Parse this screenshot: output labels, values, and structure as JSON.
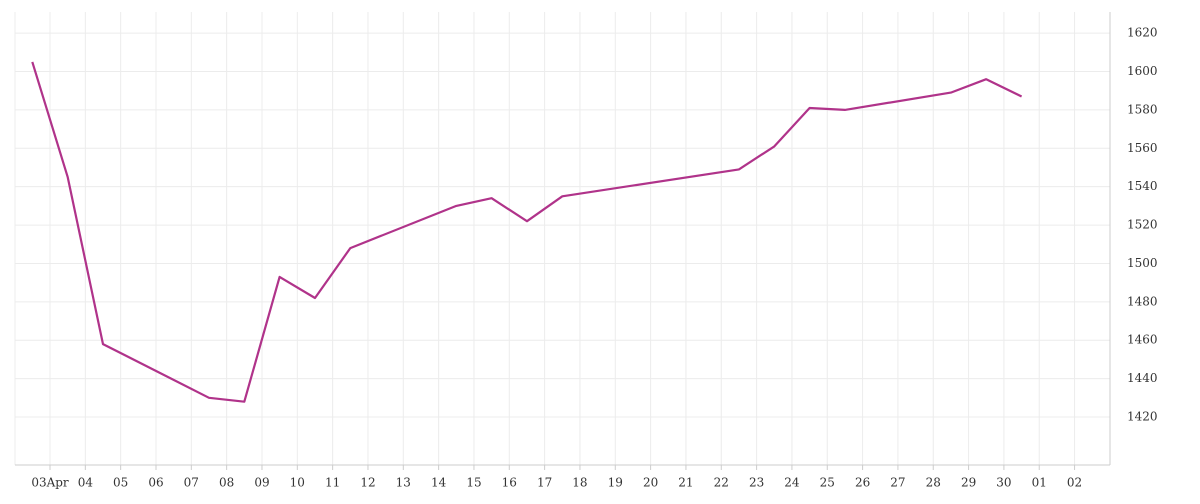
{
  "chart_data": {
    "type": "line",
    "xticks": [
      "03Apr",
      "04",
      "05",
      "06",
      "07",
      "08",
      "09",
      "10",
      "11",
      "12",
      "13",
      "14",
      "15",
      "16",
      "17",
      "18",
      "19",
      "20",
      "21",
      "22",
      "23",
      "24",
      "25",
      "26",
      "27",
      "28",
      "29",
      "30",
      "01",
      "02"
    ],
    "x": [
      "03Apr",
      "04",
      "05",
      "08",
      "09",
      "10",
      "11",
      "12",
      "15",
      "16",
      "17",
      "18",
      "23",
      "24",
      "25",
      "26",
      "29",
      "30",
      "01"
    ],
    "series": [
      {
        "color": "#b0338a",
        "values": [
          1605,
          1545,
          1458,
          1430,
          1428,
          1493,
          1482,
          1508,
          1530,
          1534,
          1522,
          1535,
          1549,
          1561,
          1581,
          1580,
          1589,
          1596,
          1587
        ]
      }
    ],
    "ylim": [
      1395,
      1631
    ],
    "yticks": [
      1420,
      1440,
      1460,
      1480,
      1500,
      1520,
      1540,
      1560,
      1580,
      1600,
      1620
    ],
    "grid": true
  }
}
